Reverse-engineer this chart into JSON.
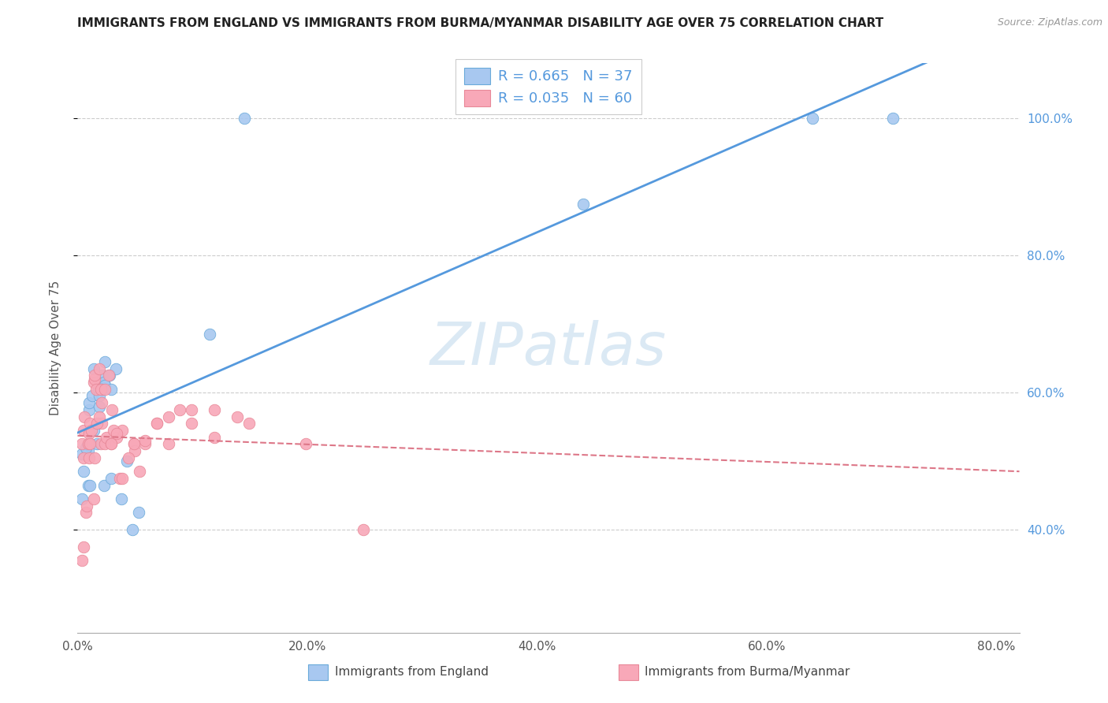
{
  "title": "IMMIGRANTS FROM ENGLAND VS IMMIGRANTS FROM BURMA/MYANMAR DISABILITY AGE OVER 75 CORRELATION CHART",
  "source": "Source: ZipAtlas.com",
  "ylabel_label": "Disability Age Over 75",
  "england_R": 0.665,
  "england_N": 37,
  "burma_R": 0.035,
  "burma_N": 60,
  "england_color": "#a8c8f0",
  "burma_color": "#f8a8b8",
  "england_edge_color": "#6aaada",
  "burma_edge_color": "#e88898",
  "england_line_color": "#5599dd",
  "burma_line_color": "#dd7788",
  "watermark_color": "#cce0f0",
  "background_color": "#ffffff",
  "grid_color": "#cccccc",
  "right_tick_color": "#5599dd",
  "x_tick_labels": [
    "0.0%",
    "20.0%",
    "40.0%",
    "60.0%",
    "80.0%"
  ],
  "x_tick_vals": [
    0.0,
    0.2,
    0.4,
    0.6,
    0.8
  ],
  "y_tick_vals": [
    0.4,
    0.6,
    0.8,
    1.0
  ],
  "y_tick_labels": [
    "40.0%",
    "60.0%",
    "80.0%",
    "100.0%"
  ],
  "xlim": [
    0.0,
    0.82
  ],
  "ylim": [
    0.25,
    1.08
  ],
  "england_label": "Immigrants from England",
  "burma_label": "Immigrants from Burma/Myanmar",
  "england_scatter_x": [
    0.008,
    0.018,
    0.022,
    0.01,
    0.005,
    0.01,
    0.013,
    0.018,
    0.023,
    0.028,
    0.024,
    0.019,
    0.009,
    0.014,
    0.024,
    0.004,
    0.009,
    0.014,
    0.019,
    0.023,
    0.029,
    0.033,
    0.038,
    0.048,
    0.44,
    0.64,
    0.71,
    0.004,
    0.007,
    0.011,
    0.017,
    0.021,
    0.029,
    0.043,
    0.053,
    0.115,
    0.145
  ],
  "england_scatter_y": [
    0.51,
    0.615,
    0.625,
    0.575,
    0.485,
    0.585,
    0.595,
    0.605,
    0.615,
    0.625,
    0.61,
    0.595,
    0.515,
    0.635,
    0.645,
    0.445,
    0.465,
    0.545,
    0.58,
    0.465,
    0.475,
    0.635,
    0.445,
    0.4,
    0.875,
    1.0,
    1.0,
    0.51,
    0.52,
    0.465,
    0.525,
    0.605,
    0.605,
    0.5,
    0.425,
    0.685,
    1.0
  ],
  "burma_scatter_x": [
    0.004,
    0.005,
    0.006,
    0.005,
    0.009,
    0.01,
    0.011,
    0.01,
    0.014,
    0.015,
    0.016,
    0.015,
    0.019,
    0.02,
    0.021,
    0.02,
    0.024,
    0.025,
    0.029,
    0.03,
    0.034,
    0.039,
    0.049,
    0.05,
    0.059,
    0.069,
    0.079,
    0.089,
    0.099,
    0.119,
    0.139,
    0.199,
    0.249,
    0.004,
    0.005,
    0.007,
    0.008,
    0.011,
    0.012,
    0.014,
    0.015,
    0.017,
    0.019,
    0.021,
    0.024,
    0.027,
    0.029,
    0.031,
    0.034,
    0.037,
    0.039,
    0.044,
    0.049,
    0.054,
    0.059,
    0.069,
    0.079,
    0.099,
    0.119,
    0.149
  ],
  "burma_scatter_y": [
    0.525,
    0.545,
    0.565,
    0.505,
    0.525,
    0.54,
    0.555,
    0.505,
    0.615,
    0.62,
    0.605,
    0.625,
    0.635,
    0.525,
    0.555,
    0.605,
    0.525,
    0.535,
    0.525,
    0.575,
    0.535,
    0.545,
    0.525,
    0.515,
    0.525,
    0.555,
    0.565,
    0.575,
    0.575,
    0.535,
    0.565,
    0.525,
    0.4,
    0.355,
    0.375,
    0.425,
    0.435,
    0.525,
    0.545,
    0.445,
    0.505,
    0.555,
    0.565,
    0.585,
    0.605,
    0.625,
    0.525,
    0.545,
    0.54,
    0.475,
    0.475,
    0.505,
    0.525,
    0.485,
    0.53,
    0.555,
    0.525,
    0.555,
    0.575,
    0.555
  ]
}
